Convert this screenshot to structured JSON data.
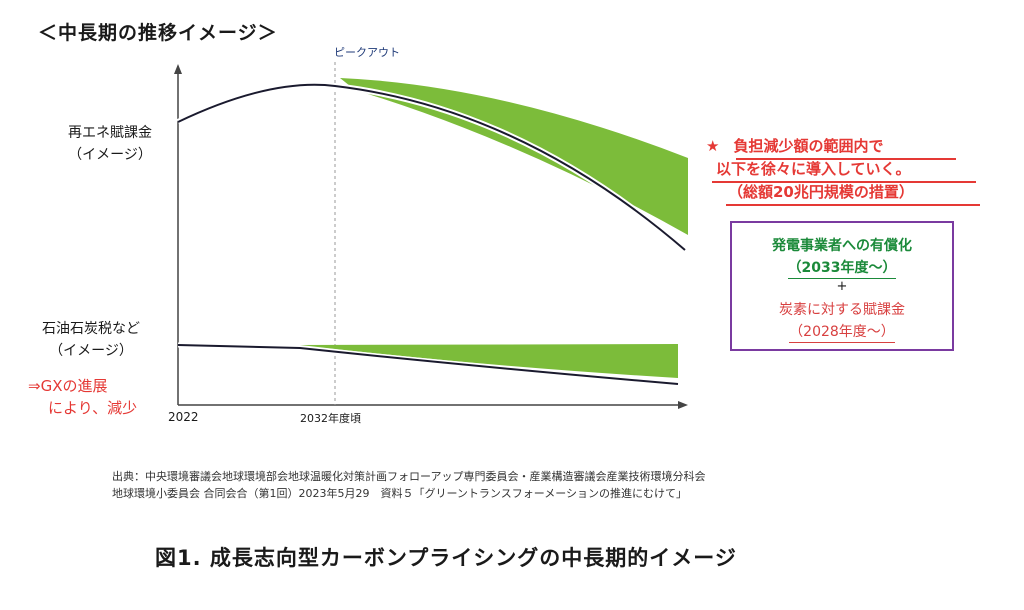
{
  "title": "＜中長期の推移イメージ＞",
  "peak_label": "ピークアウト",
  "renewable_label": [
    "再エネ賦課金",
    "（イメージ）"
  ],
  "oil_label": [
    "石油石炭税など",
    "（イメージ）"
  ],
  "gx_note": [
    "⇒GXの進展",
    "により、減少"
  ],
  "x_labels": {
    "start": "2022",
    "peak": "2032年度頃"
  },
  "note": {
    "star": "★",
    "lines": [
      "負担減少額の範囲内で",
      "以下を徐々に導入していく。",
      "（総額20兆円規模の措置）"
    ]
  },
  "box": {
    "line1": "発電事業者への有償化",
    "line2": "（2033年度～）",
    "plus": "+",
    "line3": "炭素に対する賦課金",
    "line4": "（2028年度～）"
  },
  "source": [
    "出典：中央環境審議会地球環境部会地球温暖化対策計画フォローアップ専門委員会・産業構造審議会産業技術環境分科会",
    "地球環境小委員会 合同会合（第1回）2023年5月29　資料５「グリーントランスフォーメーションの推進にむけて」"
  ],
  "caption": "図1.  成長志向型カーボンプライシングの中長期的イメージ",
  "colors": {
    "fill": "#7cbc3a",
    "line": "#1a1a2e",
    "note_red": "#e53935",
    "box_border": "#7a3aa0",
    "box_green": "#1b8a3a"
  }
}
